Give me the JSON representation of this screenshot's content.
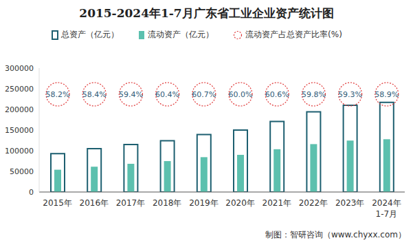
{
  "chart_data": {
    "type": "bar",
    "title": "2015-2024年1-7月广东省工业企业资产统计图",
    "source": "制图：智研咨询（www.chyxx.com）",
    "categories": [
      "2015年",
      "2016年",
      "2017年",
      "2018年",
      "2019年",
      "2020年",
      "2021年",
      "2022年",
      "2023年",
      "2024年1-7月"
    ],
    "series": [
      {
        "name": "总资产（亿元）",
        "color": "#1d5f70",
        "values": [
          93000,
          105000,
          115000,
          124000,
          139000,
          150000,
          171000,
          194000,
          210000,
          217000
        ]
      },
      {
        "name": "流动资产（亿元）",
        "color": "#5cc0ae",
        "values": [
          54000,
          61300,
          68300,
          74900,
          84400,
          90000,
          103600,
          116000,
          124500,
          127800
        ]
      },
      {
        "name": "流动资产占总资产比率(%)",
        "type": "annotation",
        "marker": "circle",
        "line_style": "dotted",
        "color": "#e03a3a",
        "values": [
          58.2,
          58.4,
          59.4,
          60.4,
          60.7,
          60.0,
          60.6,
          59.8,
          59.3,
          58.9
        ],
        "value_labels": [
          "58.2%",
          "58.4%",
          "59.4%",
          "60.4%",
          "60.7%",
          "60.0%",
          "60.6%",
          "59.8%",
          "59.3%",
          "58.9%"
        ]
      }
    ],
    "ylim": [
      0,
      300000
    ],
    "yticks": [
      0,
      50000,
      100000,
      150000,
      200000,
      250000,
      300000
    ],
    "grid": false,
    "legend": "top"
  }
}
